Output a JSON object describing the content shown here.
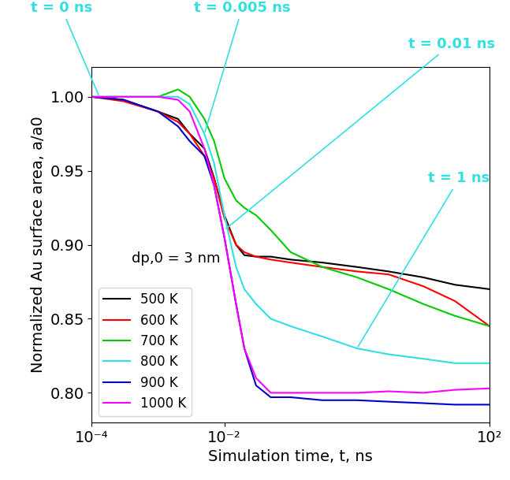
{
  "chart_data": {
    "type": "line",
    "x_label": "Simulation time, t, ns",
    "y_label": "Normalized Au surface area, a/a0",
    "log": "x",
    "legend": "lower left",
    "xlim": [
      0.0001,
      100
    ],
    "xticks": [
      {
        "value": 0.0001,
        "label": "10⁻⁴"
      },
      {
        "value": 0.01,
        "label": "10⁻²"
      },
      {
        "value": 100,
        "label": "10²"
      }
    ],
    "ylim": [
      0.78,
      1.02
    ],
    "yticks": [
      {
        "value": 0.8,
        "label": "0.80"
      },
      0.85,
      {
        "value": 0.9,
        "label": "0.90"
      },
      0.95,
      {
        "value": 1.0,
        "label": "1.00"
      }
    ],
    "x": [
      0.0001,
      0.0003,
      0.001,
      0.002,
      0.003,
      0.005,
      0.007,
      0.01,
      0.015,
      0.02,
      0.03,
      0.05,
      0.1,
      0.3,
      1,
      3,
      10,
      30,
      100
    ],
    "series": [
      {
        "name": "500 K",
        "color": "#000000",
        "values": [
          1.0,
          0.998,
          0.99,
          0.985,
          0.975,
          0.965,
          0.945,
          0.92,
          0.9,
          0.893,
          0.892,
          0.892,
          0.89,
          0.888,
          0.885,
          0.882,
          0.878,
          0.873,
          0.87
        ]
      },
      {
        "name": "600 K",
        "color": "#ff0000",
        "values": [
          1.0,
          0.997,
          0.99,
          0.983,
          0.975,
          0.96,
          0.945,
          0.918,
          0.9,
          0.895,
          0.892,
          0.89,
          0.888,
          0.885,
          0.882,
          0.88,
          0.872,
          0.862,
          0.845
        ]
      },
      {
        "name": "700 K",
        "color": "#00cc00",
        "values": [
          1.0,
          1.0,
          1.0,
          1.005,
          1.0,
          0.985,
          0.97,
          0.945,
          0.93,
          0.925,
          0.92,
          0.91,
          0.895,
          0.885,
          0.878,
          0.87,
          0.86,
          0.852,
          0.845
        ]
      },
      {
        "name": "800 K",
        "color": "#33e0e0",
        "values": [
          1.0,
          1.0,
          1.0,
          1.0,
          0.995,
          0.975,
          0.955,
          0.92,
          0.885,
          0.87,
          0.86,
          0.85,
          0.845,
          0.838,
          0.83,
          0.826,
          0.823,
          0.82,
          0.82
        ]
      },
      {
        "name": "900 K",
        "color": "#0000cc",
        "values": [
          1.0,
          0.998,
          0.99,
          0.98,
          0.97,
          0.96,
          0.94,
          0.905,
          0.86,
          0.83,
          0.805,
          0.797,
          0.797,
          0.795,
          0.795,
          0.794,
          0.793,
          0.792,
          0.792
        ]
      },
      {
        "name": "1000 K",
        "color": "#ff00ff",
        "values": [
          1.0,
          1.0,
          1.0,
          0.998,
          0.99,
          0.965,
          0.94,
          0.905,
          0.86,
          0.83,
          0.81,
          0.8,
          0.8,
          0.8,
          0.8,
          0.801,
          0.8,
          0.802,
          0.803
        ]
      }
    ],
    "annotations": [
      {
        "text": "t = 0 ns",
        "x": 0.00013,
        "y": 1.0,
        "color": "#33e0e0"
      },
      {
        "text": "t = 0.005 ns",
        "x": 0.005,
        "y": 0.975,
        "color": "#33e0e0"
      },
      {
        "text": "t = 0.01 ns",
        "x": 0.01,
        "y": 0.91,
        "color": "#33e0e0"
      },
      {
        "text": "t = 1 ns",
        "x": 1,
        "y": 0.83,
        "color": "#33e0e0"
      }
    ],
    "note": "dp,0 = 3 nm"
  }
}
